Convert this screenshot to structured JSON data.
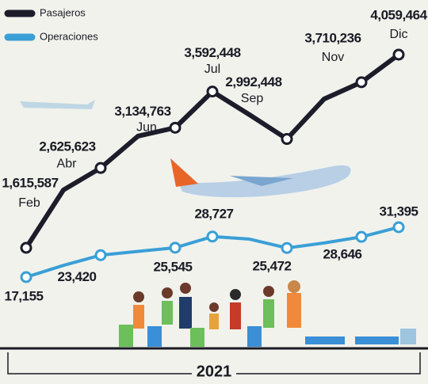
{
  "chart_data": {
    "type": "line",
    "categories": [
      "Feb",
      null,
      "Abr",
      null,
      "Jun",
      "Jul",
      null,
      "Sep",
      null,
      "Nov",
      "Dic"
    ],
    "x_label": "2021",
    "series": [
      {
        "name": "Pasajeros",
        "color": "#1c1c2a",
        "values": [
          1615587,
          2347000,
          2625623,
          3028000,
          3134763,
          3592448,
          3298000,
          2992448,
          3499000,
          3710236,
          4059464
        ],
        "value_labels": [
          "1,615,587",
          null,
          "2,625,623",
          null,
          "3,134,763",
          "3,592,448",
          null,
          "2,992,448",
          null,
          "3,710,236",
          "4,059,464"
        ]
      },
      {
        "name": "Operaciones",
        "color": "#3a9fd6",
        "values": [
          17155,
          20500,
          23420,
          24500,
          25545,
          28727,
          28000,
          25472,
          26900,
          28646,
          31395
        ],
        "value_labels": [
          "17,155",
          null,
          "23,420",
          null,
          "25,545",
          "28,727",
          null,
          "25,472",
          null,
          "28,646",
          "31,395"
        ]
      }
    ]
  }
}
